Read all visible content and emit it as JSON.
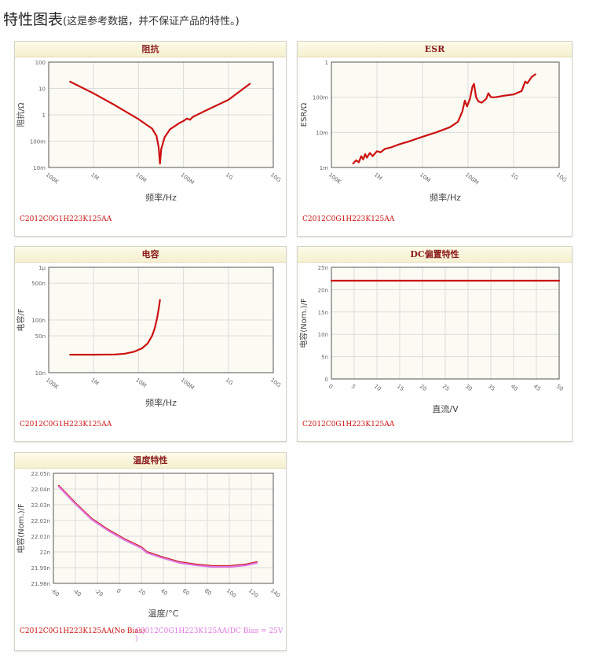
{
  "page": {
    "title": "特性图表",
    "note": "(这是参考数据，并不保证产品的特性。)"
  },
  "colors": {
    "no_bias": "#cc1111",
    "dc_bias": "#dd77dd",
    "plot_bg": "#fbfaf3",
    "grid": "#dcdcdc"
  },
  "chart_data": [
    {
      "id": "impedance",
      "type": "line",
      "title": "阻抗",
      "xlabel": "频率/Hz",
      "ylabel": "阻抗/Ω",
      "xscale": "log",
      "yscale": "log",
      "xlim": [
        100000,
        10000000000
      ],
      "ylim": [
        0.01,
        100
      ],
      "xticks": [
        {
          "v": 100000,
          "label": "100K"
        },
        {
          "v": 1000000,
          "label": "1M"
        },
        {
          "v": 10000000,
          "label": "10M"
        },
        {
          "v": 100000000,
          "label": "100M"
        },
        {
          "v": 1000000000,
          "label": "1G"
        },
        {
          "v": 10000000000,
          "label": "10G"
        }
      ],
      "yticks": [
        {
          "v": 0.01,
          "label": "10m"
        },
        {
          "v": 0.1,
          "label": "100m"
        },
        {
          "v": 1,
          "label": "1"
        },
        {
          "v": 10,
          "label": "10"
        },
        {
          "v": 100,
          "label": "100"
        }
      ],
      "part": "C2012C0G1H223K125AA",
      "series": [
        {
          "color": "#cc1111",
          "points": [
            [
              300000,
              18
            ],
            [
              1000000,
              6.5
            ],
            [
              3000000,
              2.3
            ],
            [
              10000000,
              0.68
            ],
            [
              20000000,
              0.3
            ],
            [
              25000000,
              0.16
            ],
            [
              28000000,
              0.06
            ],
            [
              30000000,
              0.014
            ],
            [
              32000000,
              0.05
            ],
            [
              38000000,
              0.14
            ],
            [
              50000000,
              0.28
            ],
            [
              80000000,
              0.48
            ],
            [
              100000000,
              0.58
            ],
            [
              120000000,
              0.72
            ],
            [
              140000000,
              0.65
            ],
            [
              160000000,
              0.82
            ],
            [
              300000000,
              1.4
            ],
            [
              1000000000,
              3.7
            ],
            [
              3000000000,
              15
            ]
          ]
        }
      ]
    },
    {
      "id": "esr",
      "type": "line",
      "title": "ESR",
      "xlabel": "频率/Hz",
      "ylabel": "ESR/Ω",
      "xscale": "log",
      "yscale": "log",
      "xlim": [
        100000,
        10000000000
      ],
      "ylim": [
        0.001,
        1
      ],
      "xticks": [
        {
          "v": 100000,
          "label": "100K"
        },
        {
          "v": 1000000,
          "label": "1M"
        },
        {
          "v": 10000000,
          "label": "10M"
        },
        {
          "v": 100000000,
          "label": "100M"
        },
        {
          "v": 1000000000,
          "label": "1G"
        },
        {
          "v": 10000000000,
          "label": "10G"
        }
      ],
      "yticks": [
        {
          "v": 0.001,
          "label": "1m"
        },
        {
          "v": 0.01,
          "label": "10m"
        },
        {
          "v": 0.1,
          "label": "100m"
        },
        {
          "v": 1,
          "label": "1"
        }
      ],
      "part": "C2012C0G1H223K125AA",
      "series": [
        {
          "color": "#cc1111",
          "points": [
            [
              300000,
              0.0013
            ],
            [
              350000,
              0.0016
            ],
            [
              400000,
              0.0014
            ],
            [
              450000,
              0.0021
            ],
            [
              500000,
              0.0017
            ],
            [
              550000,
              0.0024
            ],
            [
              600000,
              0.0019
            ],
            [
              700000,
              0.0026
            ],
            [
              800000,
              0.0021
            ],
            [
              1000000,
              0.0029
            ],
            [
              1200000,
              0.0027
            ],
            [
              1500000,
              0.0034
            ],
            [
              2000000,
              0.0037
            ],
            [
              3000000,
              0.0045
            ],
            [
              5000000,
              0.0055
            ],
            [
              10000000,
              0.0075
            ],
            [
              20000000,
              0.01
            ],
            [
              40000000,
              0.014
            ],
            [
              60000000,
              0.02
            ],
            [
              75000000,
              0.04
            ],
            [
              85000000,
              0.08
            ],
            [
              95000000,
              0.055
            ],
            [
              110000000,
              0.09
            ],
            [
              125000000,
              0.2
            ],
            [
              135000000,
              0.24
            ],
            [
              150000000,
              0.1
            ],
            [
              170000000,
              0.075
            ],
            [
              200000000,
              0.07
            ],
            [
              250000000,
              0.09
            ],
            [
              280000000,
              0.13
            ],
            [
              320000000,
              0.1
            ],
            [
              400000000,
              0.1
            ],
            [
              600000000,
              0.11
            ],
            [
              1000000000,
              0.12
            ],
            [
              1500000000,
              0.15
            ],
            [
              1800000000,
              0.28
            ],
            [
              2000000000,
              0.25
            ],
            [
              2500000000,
              0.38
            ],
            [
              3000000000,
              0.45
            ]
          ]
        }
      ]
    },
    {
      "id": "capacitance",
      "type": "line",
      "title": "电容",
      "xlabel": "频率/Hz",
      "ylabel": "电容/F",
      "xscale": "log",
      "yscale": "log",
      "xlim": [
        100000,
        10000000000
      ],
      "ylim": [
        1e-08,
        1e-06
      ],
      "xticks": [
        {
          "v": 100000,
          "label": "100K"
        },
        {
          "v": 1000000,
          "label": "1M"
        },
        {
          "v": 10000000,
          "label": "10M"
        },
        {
          "v": 100000000,
          "label": "100M"
        },
        {
          "v": 1000000000,
          "label": "1G"
        },
        {
          "v": 10000000000,
          "label": "10G"
        }
      ],
      "yticks": [
        {
          "v": 1e-08,
          "label": "10n"
        },
        {
          "v": 5e-08,
          "label": "50n"
        },
        {
          "v": 1e-07,
          "label": "100n"
        },
        {
          "v": 5e-07,
          "label": "500n"
        },
        {
          "v": 1e-06,
          "label": "1μ"
        }
      ],
      "part": "C2012C0G1H223K125AA",
      "series": [
        {
          "color": "#cc1111",
          "points": [
            [
              300000,
              2.2e-08
            ],
            [
              1000000,
              2.2e-08
            ],
            [
              3000000,
              2.21e-08
            ],
            [
              5000000,
              2.3e-08
            ],
            [
              8000000,
              2.5e-08
            ],
            [
              12000000,
              2.9e-08
            ],
            [
              16000000,
              3.6e-08
            ],
            [
              20000000,
              5e-08
            ],
            [
              23000000,
              7e-08
            ],
            [
              26000000,
              1.1e-07
            ],
            [
              28000000,
              1.6e-07
            ],
            [
              30000000,
              2.4e-07
            ]
          ]
        }
      ]
    },
    {
      "id": "dc_bias",
      "type": "line",
      "title": "DC偏置特性",
      "xlabel": "直流/V",
      "ylabel": "电容(Nom.)/F",
      "xscale": "linear",
      "yscale": "linear",
      "xlim": [
        0,
        50
      ],
      "ylim": [
        0,
        2.5e-08
      ],
      "xticks": [
        {
          "v": 0,
          "label": "0"
        },
        {
          "v": 5,
          "label": "5"
        },
        {
          "v": 10,
          "label": "10"
        },
        {
          "v": 15,
          "label": "15"
        },
        {
          "v": 20,
          "label": "20"
        },
        {
          "v": 25,
          "label": "25"
        },
        {
          "v": 30,
          "label": "30"
        },
        {
          "v": 35,
          "label": "35"
        },
        {
          "v": 40,
          "label": "40"
        },
        {
          "v": 45,
          "label": "45"
        },
        {
          "v": 50,
          "label": "50"
        }
      ],
      "yticks": [
        {
          "v": 0,
          "label": "0"
        },
        {
          "v": 5e-09,
          "label": "5n"
        },
        {
          "v": 1e-08,
          "label": "10n"
        },
        {
          "v": 1.5e-08,
          "label": "15n"
        },
        {
          "v": 2e-08,
          "label": "20n"
        },
        {
          "v": 2.5e-08,
          "label": "25n"
        }
      ],
      "part": "C2012C0G1H223K125AA",
      "series": [
        {
          "color": "#cc1111",
          "points": [
            [
              0,
              2.2e-08
            ],
            [
              50,
              2.2e-08
            ]
          ]
        }
      ]
    },
    {
      "id": "temperature",
      "type": "line",
      "title": "温度特性",
      "xlabel": "温度/°C",
      "ylabel": "电容(Nom.)/F",
      "xscale": "linear",
      "yscale": "linear",
      "xlim": [
        -60,
        140
      ],
      "ylim": [
        2.198e-08,
        2.205e-08
      ],
      "xticks": [
        {
          "v": -60,
          "label": "-60"
        },
        {
          "v": -40,
          "label": "-40"
        },
        {
          "v": -20,
          "label": "-20"
        },
        {
          "v": 0,
          "label": "0"
        },
        {
          "v": 20,
          "label": "20"
        },
        {
          "v": 40,
          "label": "40"
        },
        {
          "v": 60,
          "label": "60"
        },
        {
          "v": 80,
          "label": "80"
        },
        {
          "v": 100,
          "label": "100"
        },
        {
          "v": 120,
          "label": "120"
        },
        {
          "v": 140,
          "label": "140"
        }
      ],
      "yticks": [
        {
          "v": 2.198e-08,
          "label": "21.98n"
        },
        {
          "v": 2.199e-08,
          "label": "21.99n"
        },
        {
          "v": 2.2e-08,
          "label": "22n"
        },
        {
          "v": 2.201e-08,
          "label": "22.01n"
        },
        {
          "v": 2.202e-08,
          "label": "22.02n"
        },
        {
          "v": 2.203e-08,
          "label": "22.03n"
        },
        {
          "v": 2.204e-08,
          "label": "22.04n"
        },
        {
          "v": 2.205e-08,
          "label": "22.05n"
        }
      ],
      "parts": [
        {
          "label": "C2012C0G1H223K125AA(No Bias)",
          "color": "#cc1111"
        },
        {
          "label": "C2012C0G1H223K125AA(DC Bias = 25V )",
          "color": "#dd77dd"
        }
      ],
      "series": [
        {
          "color": "#cc1111",
          "points": [
            [
              -55,
              2.2042e-08
            ],
            [
              -40,
              2.2031e-08
            ],
            [
              -25,
              2.2021e-08
            ],
            [
              -10,
              2.2014e-08
            ],
            [
              5,
              2.2008e-08
            ],
            [
              20,
              2.2003e-08
            ],
            [
              25,
              2.2e-08
            ],
            [
              40,
              2.19965e-08
            ],
            [
              55,
              2.19935e-08
            ],
            [
              70,
              2.1992e-08
            ],
            [
              85,
              2.1991e-08
            ],
            [
              100,
              2.1991e-08
            ],
            [
              115,
              2.1992e-08
            ],
            [
              125,
              2.19935e-08
            ]
          ]
        },
        {
          "color": "#dd77dd",
          "points": [
            [
              -55,
              2.20415e-08
            ],
            [
              -40,
              2.20305e-08
            ],
            [
              -25,
              2.20205e-08
            ],
            [
              -10,
              2.20135e-08
            ],
            [
              5,
              2.20075e-08
            ],
            [
              20,
              2.20025e-08
            ],
            [
              25,
              2.19995e-08
            ],
            [
              40,
              2.1996e-08
            ],
            [
              55,
              2.1993e-08
            ],
            [
              70,
              2.19915e-08
            ],
            [
              85,
              2.19905e-08
            ],
            [
              100,
              2.19905e-08
            ],
            [
              115,
              2.19915e-08
            ],
            [
              125,
              2.1993e-08
            ]
          ]
        }
      ]
    }
  ]
}
